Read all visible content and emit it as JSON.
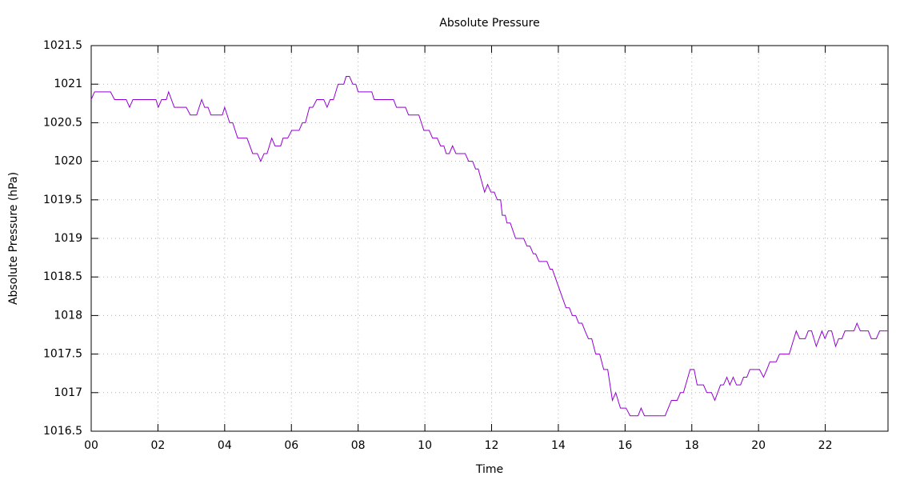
{
  "chart_data": {
    "type": "line",
    "title": "Absolute Pressure",
    "x_label": "Time",
    "y_label": "Absolute Pressure (hPa)",
    "color": "#9400d3",
    "grid": true,
    "xlim": [
      0,
      23.88
    ],
    "ylim": [
      1016.5,
      1021.5
    ],
    "xticks": [
      {
        "value": 0,
        "label": "00"
      },
      {
        "value": 2,
        "label": "02"
      },
      {
        "value": 4,
        "label": "04"
      },
      {
        "value": 6,
        "label": "06"
      },
      {
        "value": 8,
        "label": "08"
      },
      {
        "value": 10,
        "label": "10"
      },
      {
        "value": 12,
        "label": "12"
      },
      {
        "value": 14,
        "label": "14"
      },
      {
        "value": 16,
        "label": "16"
      },
      {
        "value": 18,
        "label": "18"
      },
      {
        "value": 20,
        "label": "20"
      },
      {
        "value": 22,
        "label": "22"
      }
    ],
    "yticks": [
      1016.5,
      1017,
      1017.5,
      1018,
      1018.5,
      1019,
      1019.5,
      1020,
      1020.5,
      1021,
      1021.5
    ],
    "x": [
      0,
      0.1,
      0.58,
      0.7,
      1.05,
      1.15,
      1.25,
      1.94,
      2.01,
      2.11,
      2.25,
      2.32,
      2.49,
      2.85,
      2.97,
      3.16,
      3.31,
      3.4,
      3.5,
      3.59,
      3.93,
      4.0,
      4.15,
      4.24,
      4.39,
      4.67,
      4.84,
      4.98,
      5.08,
      5.18,
      5.27,
      5.41,
      5.51,
      5.68,
      5.75,
      5.89,
      6.01,
      6.23,
      6.33,
      6.42,
      6.54,
      6.64,
      6.76,
      6.97,
      7.07,
      7.16,
      7.26,
      7.4,
      7.57,
      7.64,
      7.74,
      7.84,
      7.93,
      8.0,
      8.41,
      8.48,
      9.06,
      9.15,
      9.42,
      9.51,
      9.82,
      9.97,
      10.13,
      10.23,
      10.37,
      10.47,
      10.57,
      10.64,
      10.73,
      10.83,
      10.93,
      11.21,
      11.31,
      11.43,
      11.52,
      11.6,
      11.79,
      11.88,
      11.98,
      12.08,
      12.17,
      12.27,
      12.32,
      12.41,
      12.46,
      12.56,
      12.72,
      12.96,
      13.06,
      13.15,
      13.25,
      13.32,
      13.42,
      13.66,
      13.75,
      13.82,
      14.23,
      14.33,
      14.42,
      14.52,
      14.61,
      14.71,
      14.8,
      14.9,
      15.0,
      15.12,
      15.24,
      15.36,
      15.48,
      15.62,
      15.72,
      15.86,
      16.03,
      16.15,
      16.39,
      16.48,
      16.58,
      17.2,
      17.39,
      17.56,
      17.66,
      17.75,
      17.95,
      18.07,
      18.16,
      18.35,
      18.45,
      18.59,
      18.69,
      18.86,
      18.95,
      19.05,
      19.14,
      19.24,
      19.34,
      19.46,
      19.55,
      19.65,
      19.74,
      20.03,
      20.15,
      20.25,
      20.34,
      20.53,
      20.63,
      20.92,
      21.13,
      21.23,
      21.4,
      21.49,
      21.59,
      21.73,
      21.9,
      21.99,
      22.09,
      22.19,
      22.31,
      22.4,
      22.5,
      22.59,
      22.86,
      22.95,
      23.05,
      23.29,
      23.38,
      23.53,
      23.63,
      23.86
    ],
    "values": [
      1020.8,
      1020.9,
      1020.9,
      1020.8,
      1020.8,
      1020.7,
      1020.8,
      1020.8,
      1020.7,
      1020.8,
      1020.8,
      1020.9,
      1020.7,
      1020.7,
      1020.6,
      1020.6,
      1020.8,
      1020.7,
      1020.7,
      1020.6,
      1020.6,
      1020.7,
      1020.5,
      1020.5,
      1020.3,
      1020.3,
      1020.1,
      1020.1,
      1020.0,
      1020.1,
      1020.1,
      1020.3,
      1020.2,
      1020.2,
      1020.3,
      1020.3,
      1020.4,
      1020.4,
      1020.5,
      1020.5,
      1020.7,
      1020.7,
      1020.8,
      1020.8,
      1020.7,
      1020.8,
      1020.8,
      1021.0,
      1021.0,
      1021.1,
      1021.1,
      1021.0,
      1021.0,
      1020.9,
      1020.9,
      1020.8,
      1020.8,
      1020.7,
      1020.7,
      1020.6,
      1020.6,
      1020.4,
      1020.4,
      1020.3,
      1020.3,
      1020.2,
      1020.2,
      1020.1,
      1020.1,
      1020.2,
      1020.1,
      1020.1,
      1020.0,
      1020.0,
      1019.9,
      1019.9,
      1019.6,
      1019.7,
      1019.6,
      1019.6,
      1019.5,
      1019.5,
      1019.3,
      1019.3,
      1019.2,
      1019.2,
      1019.0,
      1019.0,
      1018.9,
      1018.9,
      1018.8,
      1018.8,
      1018.7,
      1018.7,
      1018.6,
      1018.6,
      1018.1,
      1018.1,
      1018.0,
      1018.0,
      1017.9,
      1017.9,
      1017.8,
      1017.7,
      1017.7,
      1017.5,
      1017.5,
      1017.3,
      1017.3,
      1016.9,
      1017.0,
      1016.8,
      1016.8,
      1016.7,
      1016.7,
      1016.8,
      1016.7,
      1016.7,
      1016.9,
      1016.9,
      1017.0,
      1017.0,
      1017.3,
      1017.3,
      1017.1,
      1017.1,
      1017.0,
      1017.0,
      1016.9,
      1017.1,
      1017.1,
      1017.2,
      1017.1,
      1017.2,
      1017.1,
      1017.1,
      1017.2,
      1017.2,
      1017.3,
      1017.3,
      1017.2,
      1017.3,
      1017.4,
      1017.4,
      1017.5,
      1017.5,
      1017.8,
      1017.7,
      1017.7,
      1017.8,
      1017.8,
      1017.6,
      1017.8,
      1017.7,
      1017.8,
      1017.8,
      1017.6,
      1017.7,
      1017.7,
      1017.8,
      1017.8,
      1017.9,
      1017.8,
      1017.8,
      1017.7,
      1017.7,
      1017.8,
      1017.8
    ]
  }
}
